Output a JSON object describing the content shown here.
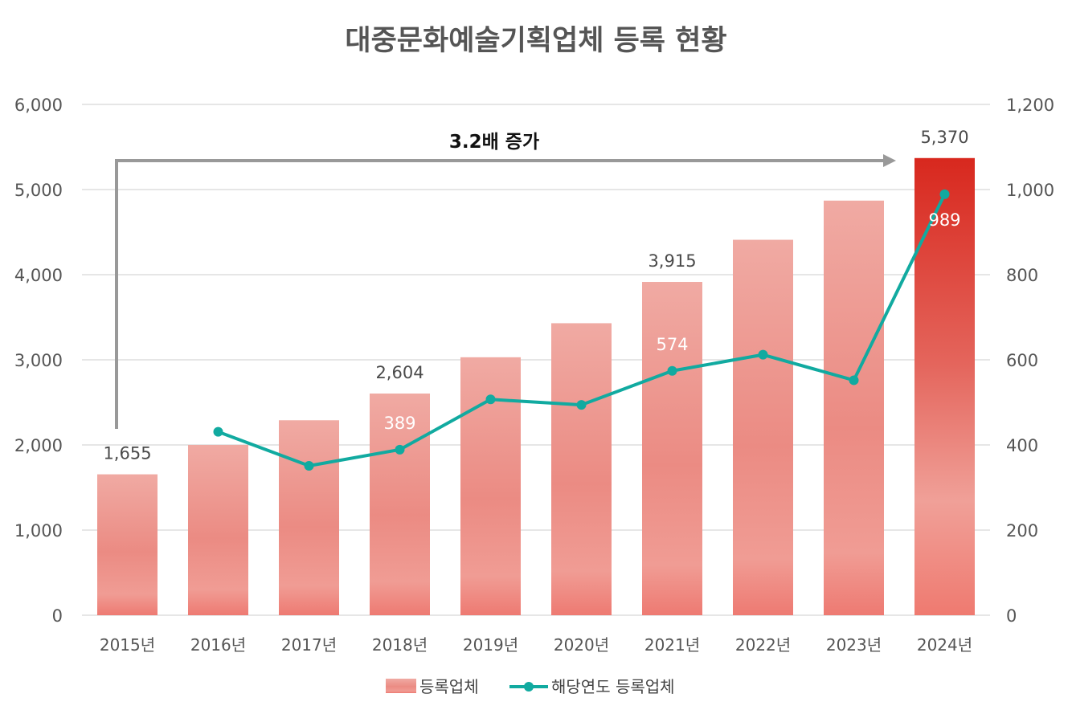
{
  "chart_data": {
    "type": "bar+line",
    "title": "대중문화예술기획업체 등록 현황",
    "categories": [
      "2015년",
      "2016년",
      "2017년",
      "2018년",
      "2019년",
      "2020년",
      "2021년",
      "2022년",
      "2023년",
      "2024년"
    ],
    "series": [
      {
        "name": "등록업체",
        "type": "bar",
        "axis": "left",
        "values": [
          1655,
          2000,
          2290,
          2604,
          3030,
          3430,
          3915,
          4410,
          4870,
          5370
        ]
      },
      {
        "name": "해당연도 등록업체",
        "type": "line",
        "axis": "right",
        "values": [
          null,
          431,
          351,
          389,
          507,
          494,
          574,
          612,
          552,
          989
        ]
      }
    ],
    "left_axis": {
      "ylim": [
        0,
        6000
      ],
      "ticks": [
        "0",
        "1,000",
        "2,000",
        "3,000",
        "4,000",
        "5,000",
        "6,000"
      ]
    },
    "right_axis": {
      "ylim": [
        0,
        1200
      ],
      "ticks": [
        "0",
        "200",
        "400",
        "600",
        "800",
        "1,000",
        "1,200"
      ]
    },
    "bar_labels": [
      {
        "index": 0,
        "text": "1,655"
      },
      {
        "index": 3,
        "text": "2,604"
      },
      {
        "index": 6,
        "text": "3,915"
      },
      {
        "index": 9,
        "text": "5,370"
      }
    ],
    "line_labels": [
      {
        "index": 3,
        "text": "389"
      },
      {
        "index": 6,
        "text": "574"
      },
      {
        "index": 9,
        "text": "989"
      }
    ],
    "annotation": "3.2배 증가",
    "grid": true,
    "legend_position": "bottom",
    "colors": {
      "bar": "#ef8f86",
      "bar_highlight": "#d9291f",
      "line": "#11aaa0",
      "grid": "#dddddd",
      "arrow": "#999999"
    }
  }
}
